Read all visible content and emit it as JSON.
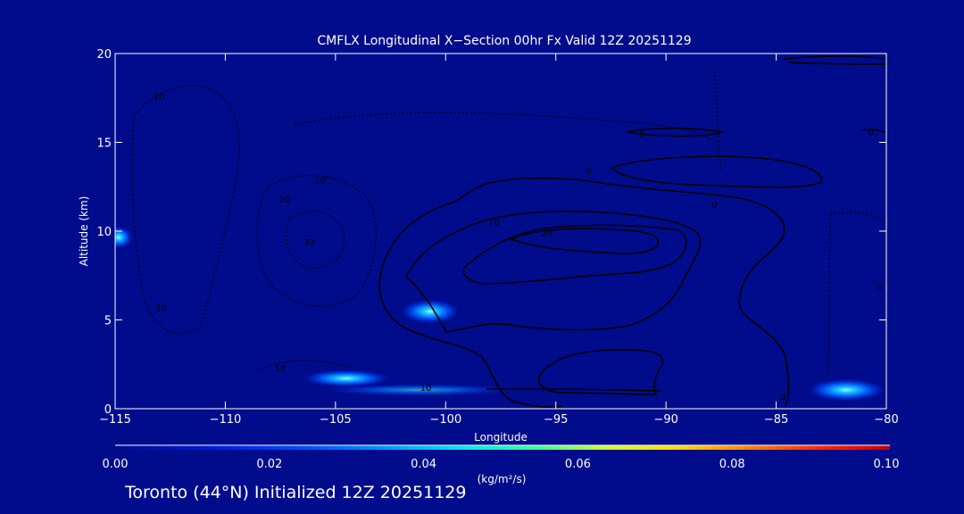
{
  "chart_data": {
    "type": "heatmap",
    "title": "CMFLX Longitudinal X−Section 00hr  Fx Valid 12Z 20251129",
    "xlabel": "Longitude",
    "ylabel": "Altitude (km)",
    "xlim": [
      -115,
      -80
    ],
    "ylim": [
      0,
      20
    ],
    "x_ticks": [
      -115,
      -110,
      -105,
      -100,
      -95,
      -90,
      -85,
      -80
    ],
    "x_tick_labels": [
      "−115",
      "−110",
      "−105",
      "−100",
      "−95",
      "−90",
      "−85",
      "−80"
    ],
    "y_ticks": [
      0,
      5,
      10,
      15,
      20
    ],
    "y_tick_labels": [
      "0",
      "5",
      "10",
      "15",
      "20"
    ],
    "colorbar": {
      "label": "(kg/m²/s)",
      "range": [
        0.0,
        0.1
      ],
      "ticks": [
        0.0,
        0.02,
        0.04,
        0.06,
        0.08,
        0.1
      ],
      "tick_labels": [
        "0.00",
        "0.02",
        "0.04",
        "0.06",
        "0.08",
        "0.10"
      ]
    },
    "filled_maxima": [
      {
        "lon": -115,
        "alt": 9.6,
        "value": 0.03
      },
      {
        "lon": -101,
        "alt": 5.5,
        "value": 0.035
      },
      {
        "lon": -104.5,
        "alt": 1.6,
        "value": 0.04
      },
      {
        "lon": -82,
        "alt": 0.9,
        "value": 0.045
      }
    ],
    "contour_labels": [
      {
        "text": "10",
        "lon": -113,
        "alt": 17.6
      },
      {
        "text": "10",
        "lon": -105.7,
        "alt": 12.9
      },
      {
        "text": "20",
        "lon": -107.3,
        "alt": 11.8
      },
      {
        "text": "30",
        "lon": -106.2,
        "alt": 9.4
      },
      {
        "text": "10",
        "lon": -112.9,
        "alt": 5.7
      },
      {
        "text": "10",
        "lon": -107.5,
        "alt": 2.3
      },
      {
        "text": "10",
        "lon": -100.9,
        "alt": 1.2
      },
      {
        "text": "10",
        "lon": -97.8,
        "alt": 10.5
      },
      {
        "text": "20",
        "lon": -95.4,
        "alt": 9.9
      },
      {
        "text": "0",
        "lon": -87.8,
        "alt": 11.5
      },
      {
        "text": "0",
        "lon": -91.1,
        "alt": 15.5
      },
      {
        "text": "0",
        "lon": -93.5,
        "alt": 13.4
      },
      {
        "text": "0",
        "lon": -80.7,
        "alt": 15.6
      },
      {
        "text": "0",
        "lon": -80.3,
        "alt": 6.9
      },
      {
        "text": "0",
        "lon": -84.7,
        "alt": 0.7
      }
    ]
  },
  "footer_text": "Toronto (44°N) Initialized 12Z 20251129"
}
